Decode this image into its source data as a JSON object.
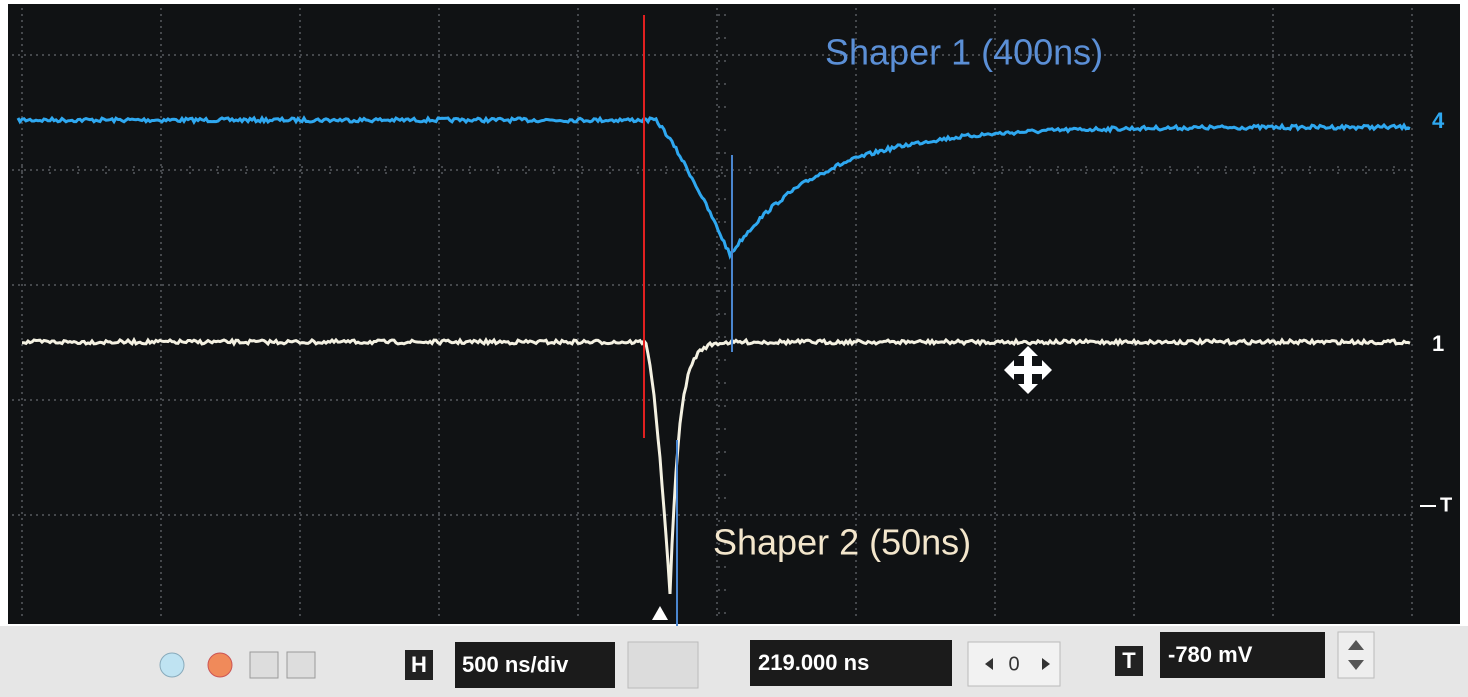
{
  "annotations": {
    "shaper1": "Shaper 1 (400ns)",
    "shaper2": "Shaper 2 (50ns)"
  },
  "markers": {
    "channel1": "4",
    "channel2": "1",
    "trigger": "T"
  },
  "toolbar": {
    "horizontal_button": "H",
    "timebase": "500 ns/div",
    "position": "219.000 ns",
    "offset": "0",
    "trigger_button": "T",
    "trigger_level": "-780 mV"
  }
}
